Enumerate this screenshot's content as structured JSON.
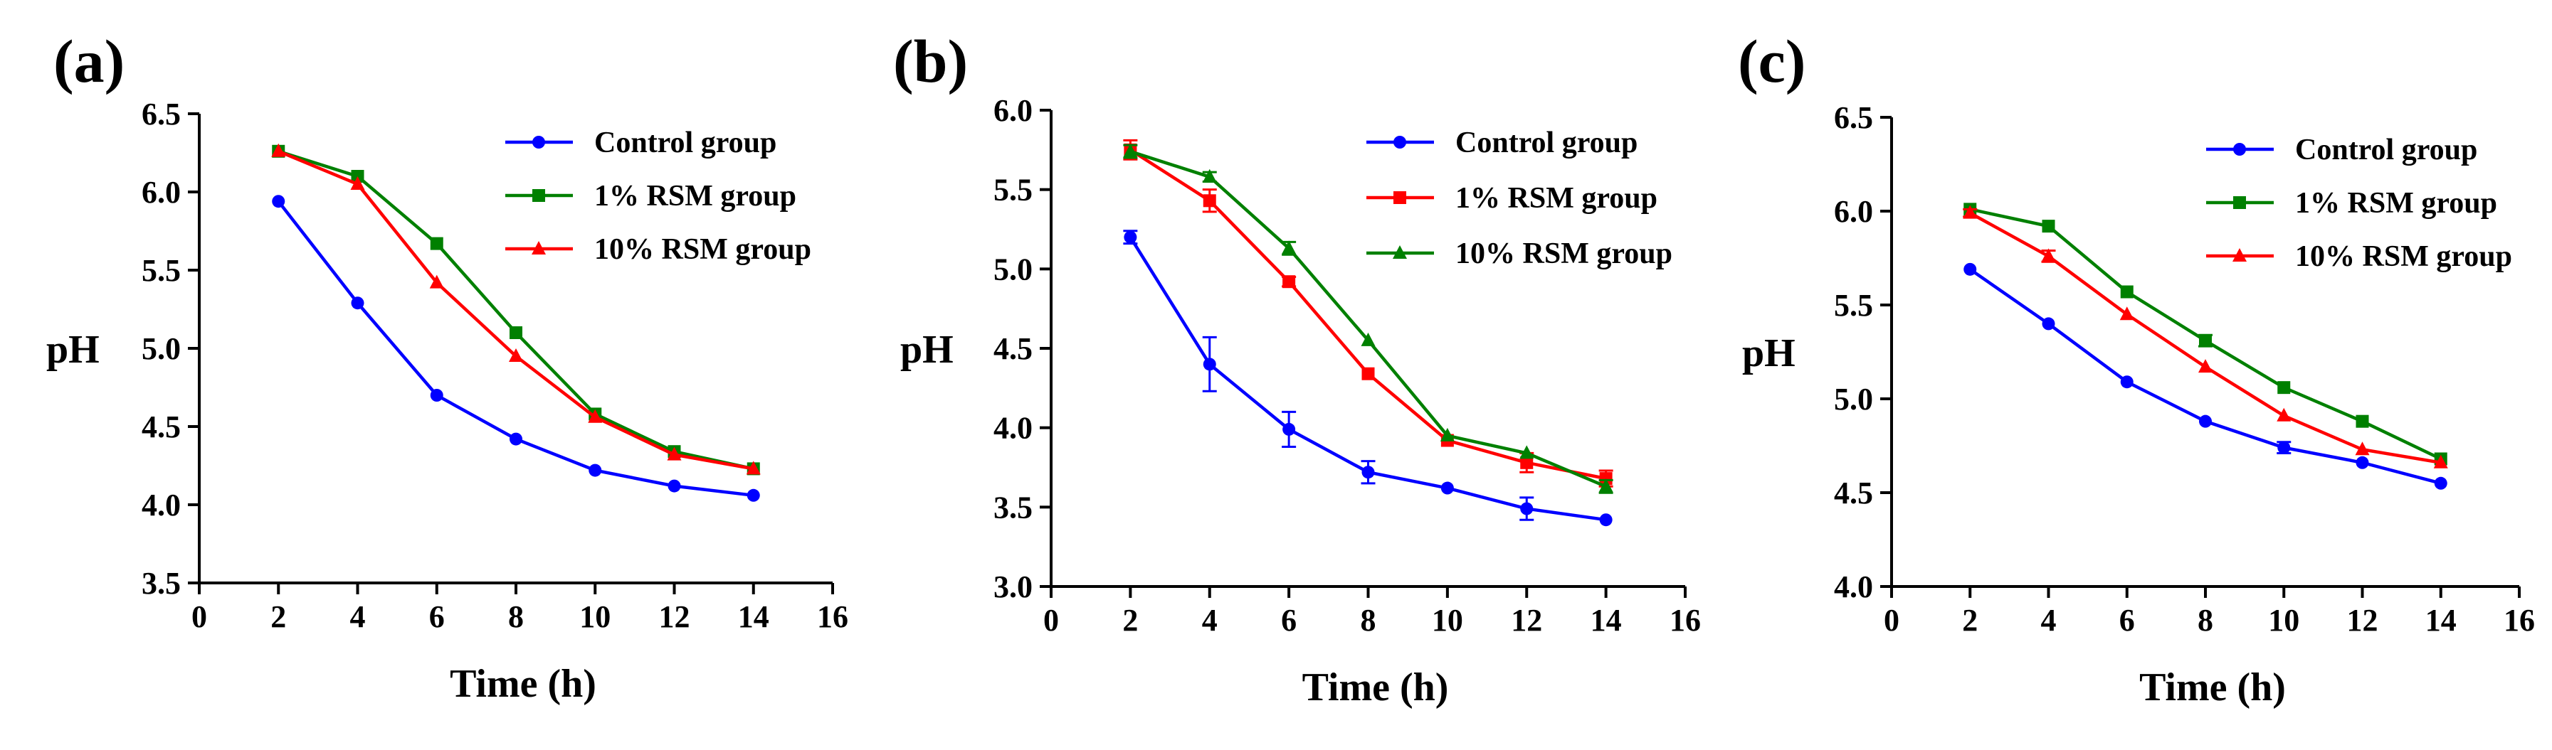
{
  "figure": {
    "panel_labels": [
      "(a)",
      "(b)",
      "(c)"
    ]
  },
  "chart_data": [
    {
      "type": "line",
      "panel": "(a)",
      "xlabel": "Time (h)",
      "ylabel": "pH",
      "xlim": [
        0,
        16
      ],
      "ylim": [
        3.5,
        6.5
      ],
      "xticks": [
        "0",
        "2",
        "4",
        "6",
        "8",
        "10",
        "12",
        "14",
        "16"
      ],
      "yticks": [
        "3.5",
        "4.0",
        "4.5",
        "5.0",
        "5.5",
        "6.0",
        "6.5"
      ],
      "legend_position": "top-right",
      "x": [
        2,
        4,
        6,
        8,
        10,
        12,
        14
      ],
      "series": [
        {
          "name": "Control group",
          "color": "#0000ff",
          "marker": "circle",
          "values": [
            5.94,
            5.29,
            4.7,
            4.42,
            4.22,
            4.12,
            4.06
          ],
          "errors": [
            0,
            0,
            0,
            0,
            0,
            0,
            0
          ]
        },
        {
          "name": "1% RSM group",
          "color": "#008000",
          "marker": "square",
          "values": [
            6.26,
            6.1,
            5.67,
            5.1,
            4.58,
            4.34,
            4.23
          ],
          "errors": [
            0,
            0,
            0,
            0,
            0,
            0,
            0
          ]
        },
        {
          "name": "10% RSM group",
          "color": "#ff0000",
          "marker": "triangle",
          "values": [
            6.26,
            6.05,
            5.42,
            4.95,
            4.56,
            4.32,
            4.23
          ],
          "errors": [
            0,
            0,
            0,
            0,
            0,
            0,
            0
          ]
        }
      ]
    },
    {
      "type": "line",
      "panel": "(b)",
      "xlabel": "Time (h)",
      "ylabel": "pH",
      "xlim": [
        0,
        16
      ],
      "ylim": [
        3.0,
        6.0
      ],
      "xticks": [
        "0",
        "2",
        "4",
        "6",
        "8",
        "10",
        "12",
        "14",
        "16"
      ],
      "yticks": [
        "3.0",
        "3.5",
        "4.0",
        "4.5",
        "5.0",
        "5.5",
        "6.0"
      ],
      "legend_position": "top-right",
      "x": [
        2,
        4,
        6,
        8,
        10,
        12,
        14
      ],
      "series": [
        {
          "name": "Control group",
          "color": "#0000ff",
          "marker": "circle",
          "values": [
            5.2,
            4.4,
            3.99,
            3.72,
            3.62,
            3.49,
            3.42
          ],
          "errors": [
            0.04,
            0.17,
            0.11,
            0.07,
            0,
            0.07,
            0
          ]
        },
        {
          "name": "1% RSM group",
          "color": "#ff0000",
          "marker": "square",
          "values": [
            5.75,
            5.43,
            4.92,
            4.34,
            3.92,
            3.78,
            3.68
          ],
          "errors": [
            0.06,
            0.07,
            0.03,
            0,
            0,
            0.06,
            0.05
          ]
        },
        {
          "name": "10% RSM group",
          "color": "#008000",
          "marker": "triangle",
          "values": [
            5.74,
            5.58,
            5.13,
            4.55,
            3.95,
            3.84,
            3.63
          ],
          "errors": [
            0.04,
            0.03,
            0.04,
            0,
            0,
            0,
            0.04
          ]
        }
      ]
    },
    {
      "type": "line",
      "panel": "(c)",
      "xlabel": "Time (h)",
      "ylabel": "pH",
      "xlim": [
        0,
        16
      ],
      "ylim": [
        4.0,
        6.5
      ],
      "xticks": [
        "0",
        "2",
        "4",
        "6",
        "8",
        "10",
        "12",
        "14",
        "16"
      ],
      "yticks": [
        "4.0",
        "4.5",
        "5.0",
        "5.5",
        "6.0",
        "6.5"
      ],
      "legend_position": "top-right",
      "x": [
        2,
        4,
        6,
        8,
        10,
        12,
        14
      ],
      "series": [
        {
          "name": "Control group",
          "color": "#0000ff",
          "marker": "circle",
          "values": [
            5.69,
            5.4,
            5.09,
            4.88,
            4.74,
            4.66,
            4.55
          ],
          "errors": [
            0,
            0,
            0,
            0,
            0.03,
            0,
            0
          ]
        },
        {
          "name": "1% RSM group",
          "color": "#008000",
          "marker": "square",
          "values": [
            6.01,
            5.92,
            5.57,
            5.31,
            5.06,
            4.88,
            4.68
          ],
          "errors": [
            0,
            0,
            0,
            0.03,
            0,
            0,
            0
          ]
        },
        {
          "name": "10% RSM group",
          "color": "#ff0000",
          "marker": "triangle",
          "values": [
            5.99,
            5.76,
            5.45,
            5.17,
            4.91,
            4.73,
            4.66
          ],
          "errors": [
            0.02,
            0.03,
            0,
            0,
            0,
            0,
            0
          ]
        }
      ]
    }
  ]
}
